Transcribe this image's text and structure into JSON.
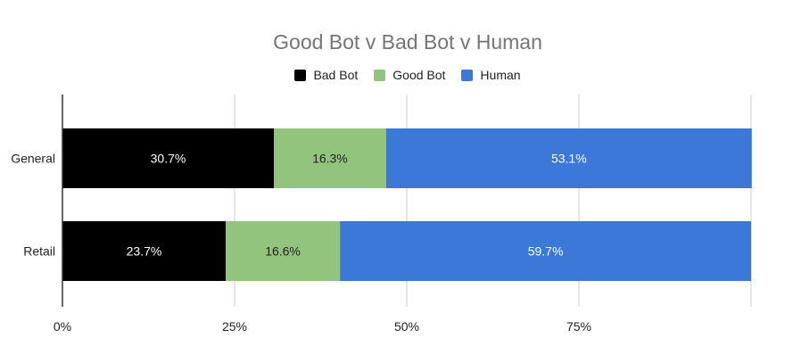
{
  "chart_data": {
    "type": "bar",
    "orientation": "horizontal",
    "stacked": true,
    "title": "Good Bot v Bad Bot v Human",
    "categories": [
      "General",
      "Retail"
    ],
    "series": [
      {
        "name": "Bad Bot",
        "values": [
          30.7,
          23.7
        ],
        "labels": [
          "30.7%",
          "23.7%"
        ],
        "color": "#000000",
        "label_color": "#ffffff"
      },
      {
        "name": "Good Bot",
        "values": [
          16.3,
          16.6
        ],
        "labels": [
          "16.3%",
          "16.6%"
        ],
        "color": "#93c47d",
        "label_color": "#222222"
      },
      {
        "name": "Human",
        "values": [
          53.1,
          59.7
        ],
        "labels": [
          "53.1%",
          "59.7%"
        ],
        "color": "#3c78d8",
        "label_color": "#ffffff"
      }
    ],
    "x_ticks": [
      {
        "value": 0,
        "label": "0%"
      },
      {
        "value": 25,
        "label": "25%"
      },
      {
        "value": 50,
        "label": "50%"
      },
      {
        "value": 75,
        "label": "75%"
      },
      {
        "value": 100,
        "label": ""
      }
    ],
    "xlim": [
      0,
      100
    ],
    "grid": true,
    "legend_position": "top"
  }
}
